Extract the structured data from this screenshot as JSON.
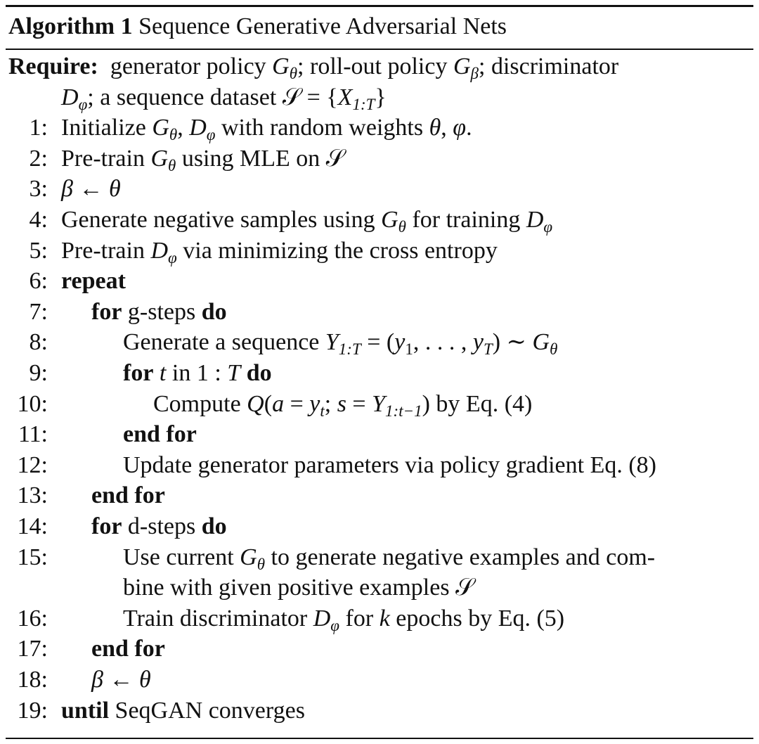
{
  "algorithm": {
    "label": "Algorithm 1",
    "title": "Sequence Generative Adversarial Nets",
    "lines": [
      {
        "num": "",
        "indent": 0,
        "req": true,
        "seg": [
          [
            "b",
            "Require:"
          ],
          [
            "",
            "  generator policy "
          ],
          [
            "i",
            "G"
          ],
          [
            "s",
            "θ"
          ],
          [
            "",
            "; roll-out policy "
          ],
          [
            "i",
            "G"
          ],
          [
            "s",
            "β"
          ],
          [
            "",
            "; discriminator"
          ]
        ]
      },
      {
        "num": "",
        "indent": 1,
        "seg": [
          [
            "i",
            "D"
          ],
          [
            "s",
            "φ"
          ],
          [
            "",
            "; a sequence dataset "
          ],
          [
            "",
            "𝒮"
          ],
          [
            "",
            " = {"
          ],
          [
            "i",
            "X"
          ],
          [
            "s",
            "1:T"
          ],
          [
            "",
            "}"
          ]
        ]
      },
      {
        "num": "1:",
        "indent": 1,
        "seg": [
          [
            "",
            "Initialize "
          ],
          [
            "i",
            "G"
          ],
          [
            "s",
            "θ"
          ],
          [
            "",
            ", "
          ],
          [
            "i",
            "D"
          ],
          [
            "s",
            "φ"
          ],
          [
            "",
            " with random weights "
          ],
          [
            "i",
            "θ"
          ],
          [
            "",
            ", "
          ],
          [
            "i",
            "φ"
          ],
          [
            "",
            "."
          ]
        ]
      },
      {
        "num": "2:",
        "indent": 1,
        "seg": [
          [
            "",
            "Pre-train "
          ],
          [
            "i",
            "G"
          ],
          [
            "s",
            "θ"
          ],
          [
            "",
            " using MLE on "
          ],
          [
            "",
            "𝒮"
          ]
        ]
      },
      {
        "num": "3:",
        "indent": 1,
        "seg": [
          [
            "i",
            "β"
          ],
          [
            "",
            " ← "
          ],
          [
            "i",
            "θ"
          ]
        ]
      },
      {
        "num": "4:",
        "indent": 1,
        "seg": [
          [
            "",
            "Generate negative samples using "
          ],
          [
            "i",
            "G"
          ],
          [
            "s",
            "θ"
          ],
          [
            "",
            " for training "
          ],
          [
            "i",
            "D"
          ],
          [
            "s",
            "φ"
          ]
        ]
      },
      {
        "num": "5:",
        "indent": 1,
        "seg": [
          [
            "",
            "Pre-train "
          ],
          [
            "i",
            "D"
          ],
          [
            "s",
            "φ"
          ],
          [
            "",
            " via minimizing the cross entropy"
          ]
        ]
      },
      {
        "num": "6:",
        "indent": 1,
        "seg": [
          [
            "b",
            "repeat"
          ]
        ]
      },
      {
        "num": "7:",
        "indent": 2,
        "seg": [
          [
            "b",
            "for"
          ],
          [
            "",
            " g-steps "
          ],
          [
            "b",
            "do"
          ]
        ]
      },
      {
        "num": "8:",
        "indent": 3,
        "seg": [
          [
            "",
            "Generate a sequence "
          ],
          [
            "i",
            "Y"
          ],
          [
            "s",
            "1:T"
          ],
          [
            "",
            " = ("
          ],
          [
            "i",
            "y"
          ],
          [
            "su",
            "1"
          ],
          [
            "",
            ", . . . , "
          ],
          [
            "i",
            "y"
          ],
          [
            "s",
            "T"
          ],
          [
            "",
            ") ∼ "
          ],
          [
            "i",
            "G"
          ],
          [
            "s",
            "θ"
          ]
        ]
      },
      {
        "num": "9:",
        "indent": 3,
        "seg": [
          [
            "b",
            "for"
          ],
          [
            "",
            " "
          ],
          [
            "i",
            "t"
          ],
          [
            "",
            " in 1 : "
          ],
          [
            "i",
            "T"
          ],
          [
            "",
            " "
          ],
          [
            "b",
            "do"
          ]
        ]
      },
      {
        "num": "10:",
        "indent": 4,
        "seg": [
          [
            "",
            "Compute "
          ],
          [
            "i",
            "Q"
          ],
          [
            "",
            "("
          ],
          [
            "i",
            "a"
          ],
          [
            "",
            " = "
          ],
          [
            "i",
            "y"
          ],
          [
            "s",
            "t"
          ],
          [
            "",
            "; "
          ],
          [
            "i",
            "s"
          ],
          [
            "",
            " = "
          ],
          [
            "i",
            "Y"
          ],
          [
            "s",
            "1:t−1"
          ],
          [
            "",
            ") by Eq. (4)"
          ]
        ]
      },
      {
        "num": "11:",
        "indent": 3,
        "seg": [
          [
            "b",
            "end for"
          ]
        ]
      },
      {
        "num": "12:",
        "indent": 3,
        "seg": [
          [
            "",
            "Update generator parameters via policy gradient Eq. (8)"
          ]
        ]
      },
      {
        "num": "13:",
        "indent": 2,
        "seg": [
          [
            "b",
            "end for"
          ]
        ]
      },
      {
        "num": "14:",
        "indent": 2,
        "seg": [
          [
            "b",
            "for"
          ],
          [
            "",
            " d-steps "
          ],
          [
            "b",
            "do"
          ]
        ]
      },
      {
        "num": "15:",
        "indent": 3,
        "seg": [
          [
            "",
            "Use current "
          ],
          [
            "i",
            "G"
          ],
          [
            "s",
            "θ"
          ],
          [
            "",
            " to generate negative examples and com-"
          ]
        ]
      },
      {
        "num": "",
        "indent": 3,
        "seg": [
          [
            "",
            "bine with given positive examples "
          ],
          [
            "",
            "𝒮"
          ]
        ]
      },
      {
        "num": "16:",
        "indent": 3,
        "seg": [
          [
            "",
            "Train discriminator "
          ],
          [
            "i",
            "D"
          ],
          [
            "s",
            "φ"
          ],
          [
            "",
            " for "
          ],
          [
            "i",
            "k"
          ],
          [
            "",
            " epochs by Eq. (5)"
          ]
        ]
      },
      {
        "num": "17:",
        "indent": 2,
        "seg": [
          [
            "b",
            "end for"
          ]
        ]
      },
      {
        "num": "18:",
        "indent": 2,
        "seg": [
          [
            "i",
            "β"
          ],
          [
            "",
            " ← "
          ],
          [
            "i",
            "θ"
          ]
        ]
      },
      {
        "num": "19:",
        "indent": 1,
        "seg": [
          [
            "b",
            "until"
          ],
          [
            "",
            " SeqGAN converges"
          ]
        ]
      }
    ]
  }
}
